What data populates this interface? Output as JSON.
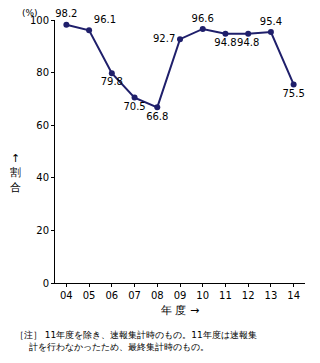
{
  "chart_data": {
    "type": "line",
    "categories": [
      "04",
      "05",
      "06",
      "07",
      "08",
      "09",
      "10",
      "11",
      "12",
      "13",
      "14"
    ],
    "values": [
      98.2,
      96.1,
      79.8,
      70.5,
      66.8,
      92.7,
      96.6,
      94.8,
      94.8,
      95.4,
      75.5
    ],
    "color": "#1f1f6b",
    "marker": "circle",
    "line_style": "solid",
    "data_labels": true,
    "ylim": [
      0,
      100
    ],
    "yticks": [
      0,
      20,
      40,
      60,
      80,
      100
    ],
    "grid": false,
    "x_label": "年 度 →",
    "y_label": "↑割合",
    "annotations": [
      "(%)"
    ],
    "note": [
      "［注］ 11年度を除き、速報集計時のもの。11年度は速報集",
      "計を行わなかったため、最終集計時のもの。"
    ]
  }
}
